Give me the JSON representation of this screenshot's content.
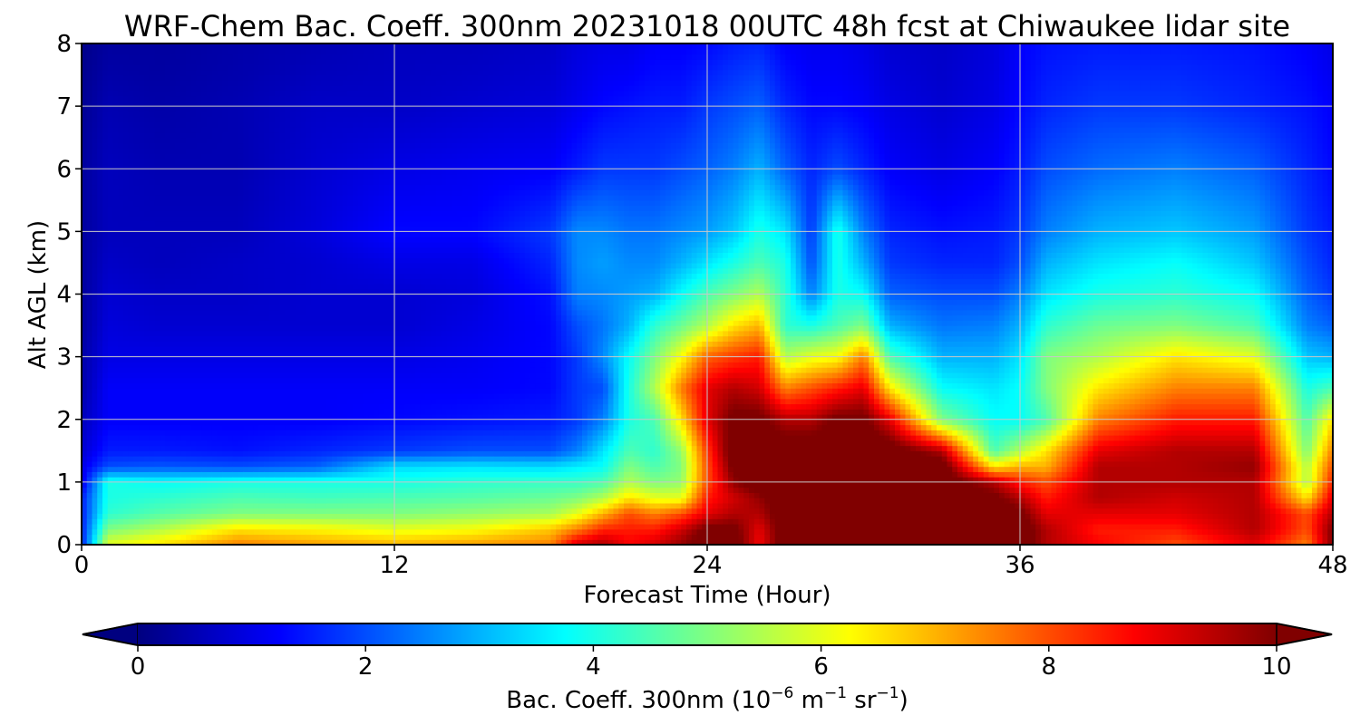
{
  "chart_data": {
    "type": "heatmap",
    "title": "WRF-Chem Bac. Coeff. 300nm  20231018 00UTC 48h fcst at Chiwaukee lidar site",
    "xlabel": "Forecast Time (Hour)",
    "ylabel": "Alt AGL (km)",
    "xlim": [
      0,
      48
    ],
    "ylim": [
      0,
      8
    ],
    "x_ticks": [
      0,
      12,
      24,
      36,
      48
    ],
    "y_ticks": [
      0,
      1,
      2,
      3,
      4,
      5,
      6,
      7,
      8
    ],
    "grid": true,
    "colormap": "jet",
    "colorbar": {
      "orientation": "horizontal",
      "position": "bottom",
      "extend": "both",
      "range": [
        0,
        10
      ],
      "ticks": [
        0,
        2,
        4,
        6,
        8,
        10
      ],
      "label_main": "Bac. Coeff. 300nm  (10",
      "label_exp1": "−6",
      "label_mid": " m",
      "label_exp2": "−1",
      "label_mid2": " sr",
      "label_exp3": "−1",
      "label_end": ")"
    },
    "y_levels": [
      0,
      0.25,
      0.5,
      0.75,
      1.0,
      1.25,
      1.5,
      2.0,
      2.5,
      3.0,
      3.5,
      4.0,
      4.5,
      5.0,
      6.0,
      7.0,
      8.0
    ],
    "x_hours": [
      0,
      1,
      3,
      6,
      9,
      12,
      15,
      18,
      19,
      20,
      21,
      22,
      23,
      24,
      25,
      26,
      27,
      28,
      29,
      30,
      31,
      33,
      35,
      36,
      37,
      39,
      42,
      45,
      47,
      48
    ],
    "values_by_hour": [
      [
        1.5,
        1.5,
        1.5,
        1.5,
        1.0,
        1.0,
        0.8,
        0.6,
        0.4,
        0.4,
        0.3,
        0.3,
        0.3,
        0.3,
        0.3,
        0.2,
        0.1
      ],
      [
        6.0,
        5.0,
        4.2,
        4.0,
        4.0,
        2.0,
        1.5,
        1.2,
        1.2,
        1.0,
        0.9,
        0.8,
        0.7,
        0.6,
        0.6,
        0.5,
        0.3
      ],
      [
        6.5,
        5.5,
        4.6,
        4.2,
        3.8,
        2.1,
        1.5,
        1.2,
        1.2,
        1.0,
        0.8,
        0.7,
        0.6,
        0.6,
        0.5,
        0.4,
        0.3
      ],
      [
        7.5,
        6.5,
        5.0,
        4.5,
        4.0,
        2.0,
        1.4,
        1.2,
        1.2,
        1.0,
        0.8,
        0.7,
        0.7,
        0.6,
        0.5,
        0.5,
        0.4
      ],
      [
        7.2,
        6.3,
        5.0,
        4.4,
        4.0,
        2.2,
        1.6,
        1.2,
        1.2,
        1.0,
        0.8,
        0.8,
        0.8,
        0.9,
        0.8,
        0.7,
        0.5
      ],
      [
        7.0,
        6.0,
        5.0,
        4.5,
        4.0,
        3.4,
        1.8,
        1.3,
        1.2,
        1.0,
        0.8,
        0.8,
        1.0,
        1.3,
        1.0,
        0.7,
        0.6
      ],
      [
        7.2,
        6.2,
        5.2,
        4.6,
        4.2,
        3.5,
        2.0,
        1.4,
        1.2,
        1.1,
        1.0,
        0.9,
        1.0,
        1.3,
        1.1,
        0.8,
        0.6
      ],
      [
        7.5,
        6.8,
        5.4,
        4.8,
        4.3,
        3.4,
        2.0,
        1.5,
        1.3,
        1.3,
        1.3,
        1.4,
        1.6,
        1.8,
        1.2,
        0.9,
        0.7
      ],
      [
        9.2,
        7.5,
        6.0,
        5.0,
        4.3,
        3.6,
        2.5,
        1.8,
        1.8,
        1.8,
        2.0,
        2.5,
        2.6,
        2.6,
        1.5,
        1.1,
        0.9
      ],
      [
        9.6,
        8.4,
        7.0,
        5.5,
        4.5,
        3.8,
        3.5,
        2.5,
        2.0,
        2.6,
        2.4,
        2.6,
        2.8,
        2.6,
        1.8,
        1.3,
        1.0
      ],
      [
        8.8,
        8.5,
        8.0,
        6.5,
        5.5,
        5.0,
        4.5,
        4.0,
        4.0,
        3.8,
        3.0,
        2.8,
        2.6,
        2.4,
        1.8,
        1.4,
        1.0
      ],
      [
        9.2,
        8.5,
        7.5,
        6.0,
        5.0,
        4.5,
        4.2,
        4.5,
        5.5,
        5.0,
        4.2,
        3.0,
        2.6,
        2.4,
        1.8,
        1.5,
        1.2
      ],
      [
        9.8,
        9.2,
        8.0,
        6.0,
        5.2,
        5.0,
        5.2,
        6.5,
        7.5,
        6.2,
        4.8,
        3.8,
        3.0,
        2.6,
        2.0,
        1.5,
        1.2
      ],
      [
        10.5,
        10.2,
        9.0,
        8.5,
        8.0,
        8.0,
        8.2,
        9.0,
        9.0,
        7.8,
        5.5,
        4.5,
        3.5,
        2.8,
        2.2,
        1.8,
        1.3
      ],
      [
        10.5,
        10.2,
        9.5,
        9.2,
        9.8,
        10.2,
        10.5,
        10.2,
        9.5,
        8.2,
        6.5,
        5.0,
        4.0,
        3.2,
        2.5,
        2.0,
        1.5
      ],
      [
        8.8,
        9.0,
        9.5,
        9.8,
        10.5,
        10.5,
        10.5,
        10.2,
        9.2,
        8.5,
        7.0,
        5.5,
        4.5,
        4.0,
        3.0,
        2.2,
        1.6
      ],
      [
        10.5,
        10.5,
        10.5,
        10.5,
        10.5,
        10.5,
        10.5,
        9.5,
        7.5,
        5.5,
        4.2,
        4.2,
        4.0,
        3.5,
        2.2,
        1.6,
        1.2
      ],
      [
        10.5,
        10.5,
        10.5,
        10.5,
        10.5,
        10.5,
        10.5,
        9.5,
        8.0,
        6.0,
        4.0,
        2.5,
        2.0,
        1.8,
        1.6,
        1.3,
        1.1
      ],
      [
        10.5,
        10.5,
        10.5,
        10.5,
        10.5,
        10.5,
        10.5,
        10.2,
        8.5,
        6.2,
        4.5,
        4.0,
        4.0,
        4.0,
        2.0,
        1.3,
        1.1
      ],
      [
        10.5,
        10.5,
        10.5,
        10.5,
        10.5,
        10.5,
        10.5,
        10.2,
        9.0,
        7.5,
        5.0,
        3.8,
        3.0,
        2.5,
        1.6,
        1.2,
        1.0
      ],
      [
        10.5,
        10.5,
        10.5,
        10.5,
        10.5,
        10.5,
        10.5,
        9.0,
        6.5,
        4.5,
        3.0,
        2.2,
        1.8,
        1.6,
        1.2,
        1.0,
        0.8
      ],
      [
        10.5,
        10.5,
        10.5,
        10.5,
        10.5,
        10.5,
        9.5,
        5.0,
        3.8,
        3.0,
        2.4,
        2.0,
        1.6,
        1.4,
        1.0,
        0.8,
        0.7
      ],
      [
        10.5,
        10.5,
        10.5,
        10.2,
        9.5,
        6.5,
        4.5,
        3.8,
        3.5,
        3.0,
        2.5,
        2.0,
        1.6,
        1.5,
        1.2,
        1.0,
        0.9
      ],
      [
        10.5,
        10.5,
        10.2,
        9.5,
        8.5,
        7.0,
        5.5,
        3.8,
        3.8,
        3.5,
        3.0,
        2.5,
        2.0,
        1.8,
        1.5,
        1.3,
        1.2
      ],
      [
        9.5,
        9.5,
        9.0,
        8.5,
        8.0,
        7.0,
        6.5,
        4.5,
        5.0,
        5.0,
        4.2,
        3.5,
        3.0,
        2.5,
        2.0,
        1.6,
        1.4
      ],
      [
        8.8,
        8.5,
        9.0,
        9.5,
        9.5,
        9.5,
        9.0,
        7.5,
        6.5,
        5.5,
        4.8,
        4.0,
        3.5,
        3.0,
        2.3,
        1.8,
        1.5
      ],
      [
        8.0,
        8.5,
        9.0,
        9.2,
        9.5,
        9.5,
        9.5,
        8.5,
        7.5,
        6.5,
        5.0,
        4.2,
        3.8,
        3.2,
        2.5,
        1.8,
        1.5
      ],
      [
        9.0,
        9.5,
        9.5,
        9.5,
        9.5,
        9.8,
        9.5,
        8.5,
        7.5,
        6.0,
        4.5,
        3.8,
        3.2,
        2.8,
        2.2,
        1.6,
        1.4
      ],
      [
        7.5,
        8.0,
        8.0,
        6.5,
        5.5,
        5.5,
        5.0,
        4.5,
        4.0,
        3.2,
        2.5,
        2.2,
        2.0,
        1.8,
        1.6,
        1.4,
        1.2
      ],
      [
        10.0,
        10.0,
        9.5,
        9.0,
        8.5,
        8.0,
        7.5,
        6.5,
        4.5,
        3.0,
        2.2,
        1.8,
        1.6,
        1.5,
        1.3,
        1.2,
        1.0
      ]
    ]
  }
}
